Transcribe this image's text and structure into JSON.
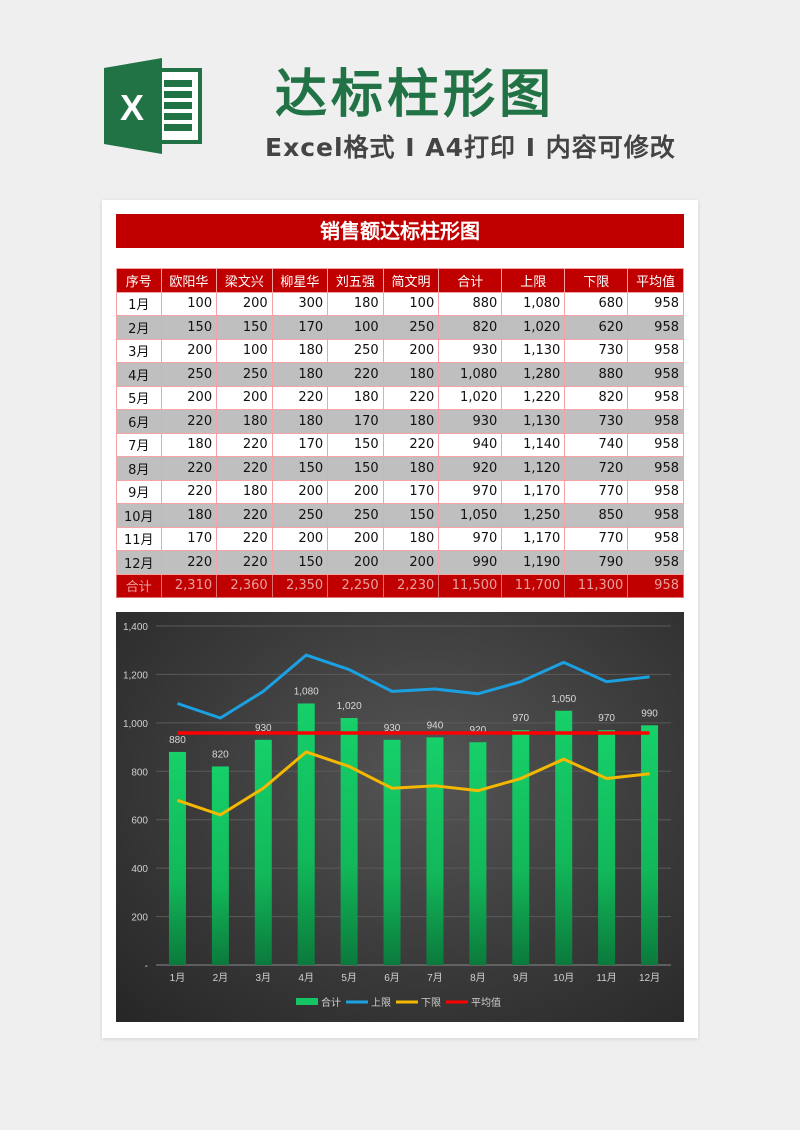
{
  "header": {
    "title": "达标柱形图",
    "subtitle": "Excel格式 I A4打印 I 内容可修改",
    "logo_letter": "X",
    "colors": {
      "brand_green": "#217346",
      "subtitle_gray": "#444444"
    }
  },
  "sheet": {
    "banner_title": "销售额达标柱形图",
    "colors": {
      "header_red": "#c00000",
      "alt_row_gray": "#bfbfbf",
      "border_pink": "#f4a4a4"
    },
    "columns": [
      "序号",
      "欧阳华",
      "梁文兴",
      "柳星华",
      "刘五强",
      "简文明",
      "合计",
      "上限",
      "下限",
      "平均值"
    ],
    "rows": [
      [
        "1月",
        "100",
        "200",
        "300",
        "180",
        "100",
        "880",
        "1,080",
        "680",
        "958"
      ],
      [
        "2月",
        "150",
        "150",
        "170",
        "100",
        "250",
        "820",
        "1,020",
        "620",
        "958"
      ],
      [
        "3月",
        "200",
        "100",
        "180",
        "250",
        "200",
        "930",
        "1,130",
        "730",
        "958"
      ],
      [
        "4月",
        "250",
        "250",
        "180",
        "220",
        "180",
        "1,080",
        "1,280",
        "880",
        "958"
      ],
      [
        "5月",
        "200",
        "200",
        "220",
        "180",
        "220",
        "1,020",
        "1,220",
        "820",
        "958"
      ],
      [
        "6月",
        "220",
        "180",
        "180",
        "170",
        "180",
        "930",
        "1,130",
        "730",
        "958"
      ],
      [
        "7月",
        "180",
        "220",
        "170",
        "150",
        "220",
        "940",
        "1,140",
        "740",
        "958"
      ],
      [
        "8月",
        "220",
        "220",
        "150",
        "150",
        "180",
        "920",
        "1,120",
        "720",
        "958"
      ],
      [
        "9月",
        "220",
        "180",
        "200",
        "200",
        "170",
        "970",
        "1,170",
        "770",
        "958"
      ],
      [
        "10月",
        "180",
        "220",
        "250",
        "250",
        "150",
        "1,050",
        "1,250",
        "850",
        "958"
      ],
      [
        "11月",
        "170",
        "220",
        "200",
        "200",
        "180",
        "970",
        "1,170",
        "770",
        "958"
      ],
      [
        "12月",
        "220",
        "220",
        "150",
        "200",
        "200",
        "990",
        "1,190",
        "790",
        "958"
      ]
    ],
    "total_row": [
      "合计",
      "2,310",
      "2,360",
      "2,350",
      "2,250",
      "2,230",
      "11,500",
      "11,700",
      "11,300",
      "958"
    ]
  },
  "chart_data": {
    "type": "bar",
    "title": "",
    "xlabel": "",
    "ylabel": "",
    "categories": [
      "1月",
      "2月",
      "3月",
      "4月",
      "5月",
      "6月",
      "7月",
      "8月",
      "9月",
      "10月",
      "11月",
      "12月"
    ],
    "ylim": [
      0,
      1400
    ],
    "yticks": [
      "-",
      "200",
      "400",
      "600",
      "800",
      "1,000",
      "1,200",
      "1,400"
    ],
    "grid": true,
    "legend_position": "bottom",
    "series": [
      {
        "name": "合计",
        "type": "bar",
        "color": "#13c563",
        "values": [
          880,
          820,
          930,
          1080,
          1020,
          930,
          940,
          920,
          970,
          1050,
          970,
          990
        ],
        "labels": [
          "880",
          "820",
          "930",
          "1,080",
          "1,020",
          "930",
          "940",
          "920",
          "970",
          "1,050",
          "970",
          "990"
        ]
      },
      {
        "name": "上限",
        "type": "line",
        "color": "#1ba1e2",
        "values": [
          1080,
          1020,
          1130,
          1280,
          1220,
          1130,
          1140,
          1120,
          1170,
          1250,
          1170,
          1190
        ]
      },
      {
        "name": "下限",
        "type": "line",
        "color": "#f5b800",
        "values": [
          680,
          620,
          730,
          880,
          820,
          730,
          740,
          720,
          770,
          850,
          770,
          790
        ]
      },
      {
        "name": "平均值",
        "type": "line",
        "color": "#ff0000",
        "values": [
          958,
          958,
          958,
          958,
          958,
          958,
          958,
          958,
          958,
          958,
          958,
          958
        ]
      }
    ]
  }
}
